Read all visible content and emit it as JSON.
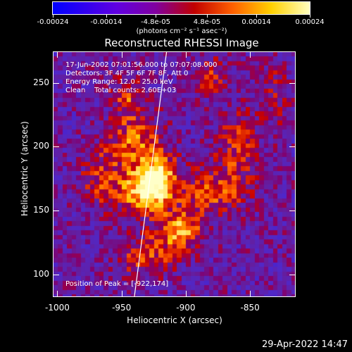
{
  "colorbar": {
    "ticks": [
      "-0.00024",
      "-0.00014",
      "-4.8e-05",
      "4.8e-05",
      "0.00014",
      "0.00024"
    ],
    "units": "(photons cm⁻² s⁻¹ asec⁻²)"
  },
  "info": {
    "time": "17-Jun-2002 07:01:56.000 to 07:07:08.000",
    "detectors": "Detectors: 3F 4F 5F 6F 7F 8F, Att 0",
    "energy": "Energy Range: 12.0 - 25.0 keV",
    "clean": "Clean    Total counts: 2.60E+03",
    "peak": "Position of Peak = [-922,174]"
  },
  "datestamp": "29-Apr-2022 14:47",
  "chart_data": {
    "type": "heatmap",
    "title": "Reconstructed RHESSI Image",
    "xlabel": "Heliocentric X (arcsec)",
    "ylabel": "Heliocentric Y (arcsec)",
    "xlim": [
      -1003,
      -815
    ],
    "ylim": [
      83,
      274
    ],
    "xticks": [
      "-1000",
      "-950",
      "-900",
      "-850"
    ],
    "yticks": [
      "100",
      "150",
      "200",
      "250"
    ],
    "colorbar_range": [
      -0.00024,
      0.00024
    ],
    "peak": [
      -922,
      174
    ],
    "limb_line": {
      "x": [
        -940,
        -915
      ],
      "y": [
        83,
        274
      ]
    },
    "sources": [
      {
        "x": -922,
        "y": 174,
        "amp": 1.0,
        "sx": 10,
        "sy": 14
      },
      {
        "x": -935,
        "y": 165,
        "amp": 0.75,
        "sx": 12,
        "sy": 12
      },
      {
        "x": -904,
        "y": 135,
        "amp": 0.8,
        "sx": 12,
        "sy": 10
      },
      {
        "x": -940,
        "y": 205,
        "amp": 0.6,
        "sx": 14,
        "sy": 16
      },
      {
        "x": -945,
        "y": 240,
        "amp": 0.45,
        "sx": 8,
        "sy": 10
      },
      {
        "x": -880,
        "y": 165,
        "amp": 0.55,
        "sx": 18,
        "sy": 12
      },
      {
        "x": -860,
        "y": 200,
        "amp": 0.4,
        "sx": 12,
        "sy": 20
      },
      {
        "x": -930,
        "y": 115,
        "amp": 0.5,
        "sx": 15,
        "sy": 12
      },
      {
        "x": -965,
        "y": 175,
        "amp": 0.4,
        "sx": 12,
        "sy": 16
      },
      {
        "x": -880,
        "y": 255,
        "amp": 0.35,
        "sx": 12,
        "sy": 10
      },
      {
        "x": -830,
        "y": 240,
        "amp": 0.3,
        "sx": 8,
        "sy": 18
      }
    ]
  }
}
